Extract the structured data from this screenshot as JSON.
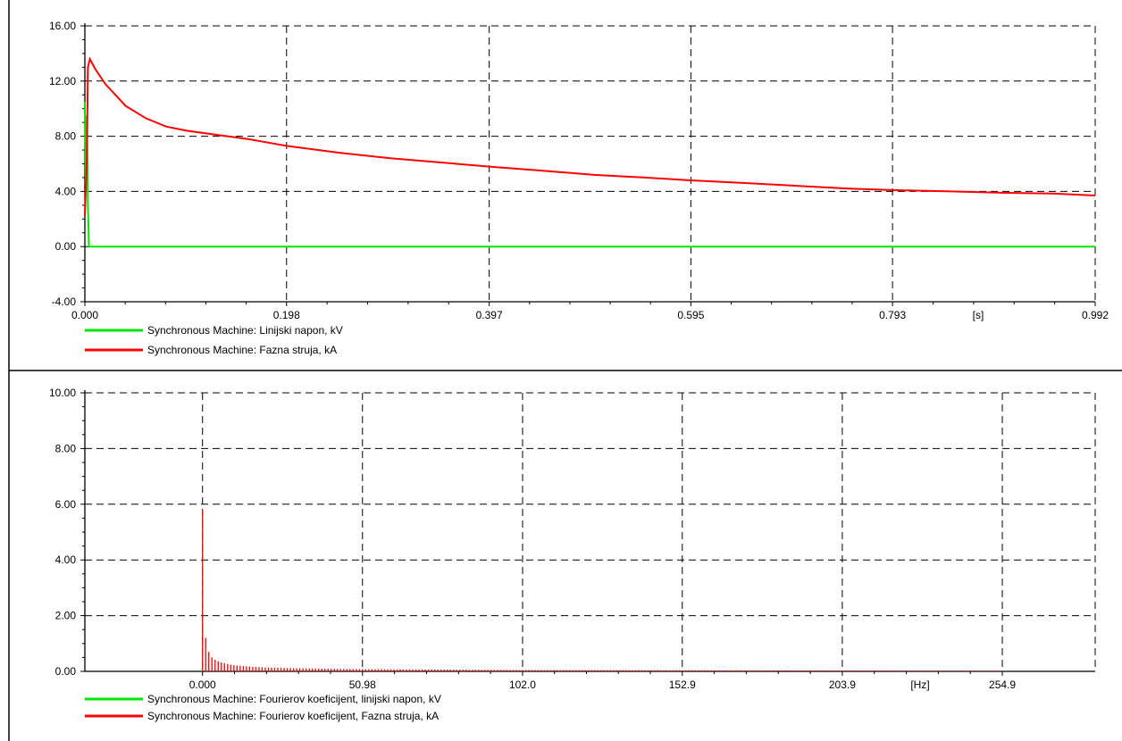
{
  "colors": {
    "series_voltage": "#00e600",
    "series_current": "#ff0000",
    "grid": "#000000"
  },
  "chart_data": [
    {
      "type": "line",
      "title": "",
      "xlabel": "",
      "ylabel": "",
      "x_unit": "[s]",
      "xlim": [
        0.0,
        0.992
      ],
      "ylim": [
        -4.0,
        16.0
      ],
      "x_ticks": [
        0.0,
        0.198,
        0.397,
        0.595,
        0.793,
        0.992
      ],
      "x_tick_labels": [
        "0.000",
        "0.198",
        "0.397",
        "0.595",
        "0.793",
        "0.992"
      ],
      "y_ticks": [
        -4,
        0,
        4,
        8,
        12,
        16
      ],
      "y_tick_labels": [
        "-4.00",
        "0.00",
        "4.00",
        "8.00",
        "12.00",
        "16.00"
      ],
      "grid": true,
      "legend_position": "bottom-left",
      "series": [
        {
          "name": "Synchronous Machine: Linijski napon, kV",
          "color": "#00e600",
          "x": [
            0.0,
            0.001,
            0.002,
            0.003,
            0.004,
            0.006,
            0.992
          ],
          "y": [
            10.5,
            4.5,
            9.5,
            3.0,
            0.0,
            0.0,
            0.0
          ]
        },
        {
          "name": "Synchronous Machine: Fazna struja, kA",
          "color": "#ff0000",
          "x": [
            0.0,
            0.002,
            0.003,
            0.005,
            0.01,
            0.02,
            0.04,
            0.06,
            0.08,
            0.1,
            0.13,
            0.16,
            0.198,
            0.25,
            0.3,
            0.35,
            0.397,
            0.45,
            0.5,
            0.55,
            0.595,
            0.65,
            0.7,
            0.75,
            0.793,
            0.85,
            0.9,
            0.95,
            0.992
          ],
          "y": [
            2.2,
            6.5,
            13.0,
            13.6,
            12.9,
            11.8,
            10.2,
            9.3,
            8.7,
            8.4,
            8.1,
            7.8,
            7.3,
            6.8,
            6.4,
            6.1,
            5.8,
            5.5,
            5.2,
            5.0,
            4.8,
            4.6,
            4.4,
            4.2,
            4.1,
            4.0,
            3.9,
            3.85,
            3.7
          ]
        }
      ]
    },
    {
      "type": "bar",
      "title": "",
      "xlabel": "",
      "ylabel": "",
      "x_unit": "[Hz]",
      "xlim": [
        -37.5,
        284.5
      ],
      "ylim": [
        0,
        10.0
      ],
      "x_ticks": [
        0.0,
        50.98,
        102.0,
        152.9,
        203.9,
        254.9
      ],
      "x_tick_labels": [
        "0.000",
        "50.98",
        "102.0",
        "152.9",
        "203.9",
        "254.9"
      ],
      "y_ticks": [
        0,
        2,
        4,
        6,
        8,
        10
      ],
      "y_tick_labels": [
        "0.00",
        "2.00",
        "4.00",
        "6.00",
        "8.00",
        "10.00"
      ],
      "grid": true,
      "legend_position": "bottom-left",
      "bar_spacing_hz": 1.0,
      "bar_range_hz": [
        0,
        254
      ],
      "series": [
        {
          "name": "Synchronous Machine:  Fourierov koeficijent, linijski napon, kV",
          "color": "#00e600",
          "x": [
            0.0
          ],
          "values": [
            0.05
          ]
        },
        {
          "name": "Synchronous Machine: Fourierov koeficijent, Fazna struja, kA",
          "color": "#ff0000",
          "x": [
            0,
            1,
            2,
            3,
            4,
            5,
            6,
            7,
            8,
            10,
            15,
            20,
            30,
            50,
            100,
            150,
            200,
            254
          ],
          "values": [
            5.8,
            1.2,
            0.7,
            0.5,
            0.42,
            0.36,
            0.32,
            0.29,
            0.26,
            0.22,
            0.17,
            0.14,
            0.11,
            0.08,
            0.05,
            0.04,
            0.03,
            0.02
          ]
        }
      ]
    }
  ]
}
